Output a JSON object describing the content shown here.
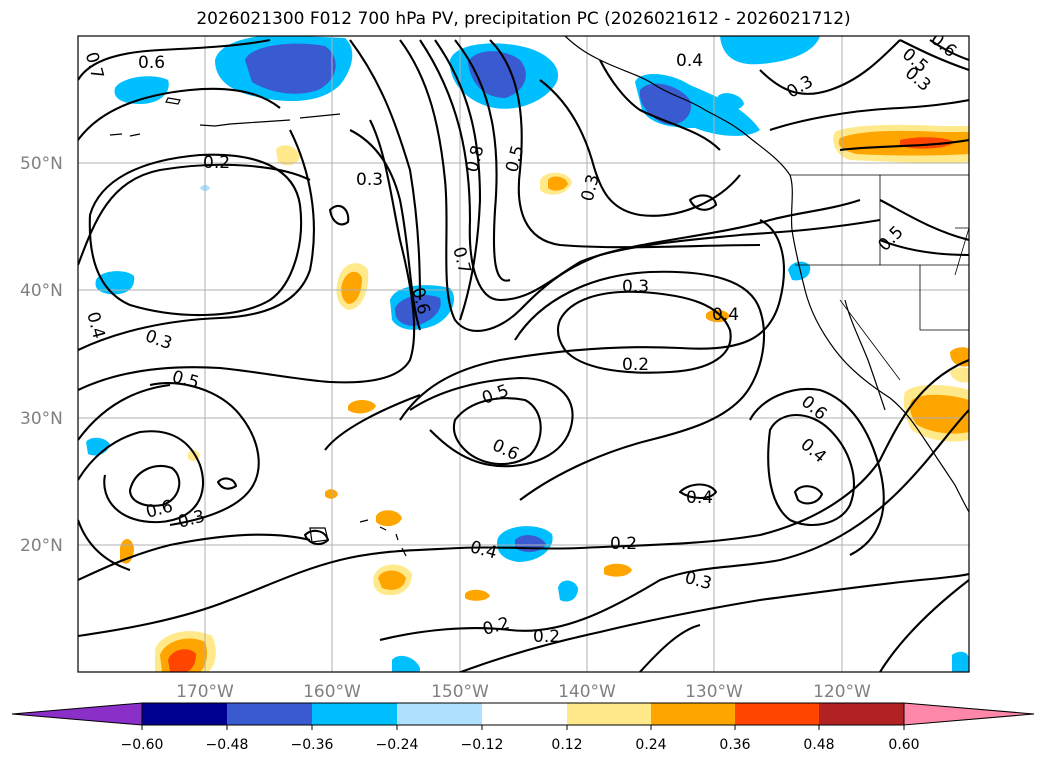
{
  "title": "2026021300 F012 700 hPa PV, precipitation PC (2026021612 - 2026021712)",
  "map": {
    "lat_labels": [
      "50°N",
      "40°N",
      "30°N",
      "20°N"
    ],
    "lon_labels": [
      "170°W",
      "160°W",
      "150°W",
      "140°W",
      "130°W",
      "120°W"
    ],
    "contour_labels": [
      "0.7",
      "0.6",
      "0.4",
      "0.5",
      "0.6",
      "0.3",
      "0.2",
      "0.3",
      "0.3",
      "0.8",
      "0.5",
      "0.3",
      "0.5",
      "0.4",
      "0.7",
      "0.6",
      "0.3",
      "0.2",
      "0.4",
      "0.3",
      "0.5",
      "0.5",
      "0.6",
      "0.6",
      "0.4",
      "0.4",
      "0.6",
      "0.3",
      "0.4",
      "0.2",
      "0.3",
      "0.2",
      "0.2"
    ]
  },
  "colorbar": {
    "ticks": [
      "−0.60",
      "−0.48",
      "−0.36",
      "−0.24",
      "−0.12",
      "0.12",
      "0.24",
      "0.36",
      "0.48",
      "0.60"
    ],
    "colors": [
      "#8b2fc9",
      "#000090",
      "#3a5bd0",
      "#00bfff",
      "#aee0ff",
      "#ffffff",
      "#ffe98a",
      "#ffa500",
      "#ff4500",
      "#b22222",
      "#ff88aa"
    ]
  }
}
